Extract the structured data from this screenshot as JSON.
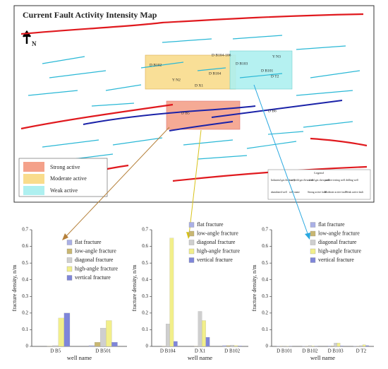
{
  "map": {
    "title": "Current Fault Activity Intensity Map",
    "north": "N",
    "zones": [
      "Strong active",
      "Moderate active",
      "Weak active"
    ],
    "wells": [
      "D B102",
      "D B104-106",
      "Y N3",
      "D B103",
      "D B101",
      "D T2",
      "Y N2",
      "D B104",
      "D X1",
      "D B5",
      "D B6"
    ],
    "legend": {
      "title": "Legend",
      "items": [
        "Industrial gas flow well",
        "low-yield gas flow well",
        "oil and gas show well",
        "positive testing well",
        "drilling well",
        "abandoned well",
        "well name",
        "Strong active fault",
        "Moderate active fault",
        "Weak active fault"
      ]
    }
  },
  "chart_data": [
    {
      "type": "bar",
      "categories": [
        "D B5",
        "D B501"
      ],
      "x_label": "well name",
      "y_label": "fracture density, n/m",
      "ylim": [
        0,
        0.7
      ],
      "yticks": [
        0,
        0.1,
        0.2,
        0.3,
        0.4,
        0.5,
        0.6,
        0.7
      ],
      "series": [
        {
          "name": "flat fracture",
          "color": "#aab0e6",
          "values": [
            0,
            0.005
          ]
        },
        {
          "name": "low-angle fracture",
          "color": "#c9b772",
          "values": [
            0.002,
            0.025
          ]
        },
        {
          "name": "diagonal fracture",
          "color": "#cfcfcf",
          "values": [
            0.005,
            0.11
          ]
        },
        {
          "name": "high-angle fracture",
          "color": "#f2ef8a",
          "values": [
            0.17,
            0.155
          ]
        },
        {
          "name": "vertical fracture",
          "color": "#7f86d9",
          "values": [
            0.2,
            0.025
          ]
        }
      ]
    },
    {
      "type": "bar",
      "categories": [
        "D B104",
        "D X1",
        "D B102"
      ],
      "x_label": "well name",
      "y_label": "fracture density, n/m",
      "ylim": [
        0,
        0.7
      ],
      "yticks": [
        0,
        0.1,
        0.2,
        0.3,
        0.4,
        0.5,
        0.6,
        0.7
      ],
      "series": [
        {
          "name": "flat fracture",
          "color": "#aab0e6",
          "values": [
            0,
            0,
            0.005
          ]
        },
        {
          "name": "low-angle fracture",
          "color": "#c9b772",
          "values": [
            0.002,
            0.002,
            0.005
          ]
        },
        {
          "name": "diagonal fracture",
          "color": "#cfcfcf",
          "values": [
            0.135,
            0.21,
            0.008
          ]
        },
        {
          "name": "high-angle fracture",
          "color": "#f2ef8a",
          "values": [
            0.65,
            0.155,
            0.005
          ]
        },
        {
          "name": "vertical fracture",
          "color": "#7f86d9",
          "values": [
            0.03,
            0.055,
            0.003
          ]
        }
      ]
    },
    {
      "type": "bar",
      "categories": [
        "D B101",
        "D B102",
        "D B103",
        "D T2"
      ],
      "x_label": "well name",
      "y_label": "fracture density, n/m",
      "ylim": [
        0,
        0.7
      ],
      "yticks": [
        0,
        0.1,
        0.2,
        0.3,
        0.4,
        0.5,
        0.6,
        0.7
      ],
      "series": [
        {
          "name": "flat fracture",
          "color": "#aab0e6",
          "values": [
            0.002,
            0.002,
            0.003,
            0.002
          ]
        },
        {
          "name": "low-angle fracture",
          "color": "#c9b772",
          "values": [
            0.002,
            0.002,
            0.003,
            0.002
          ]
        },
        {
          "name": "diagonal fracture",
          "color": "#cfcfcf",
          "values": [
            0.003,
            0.005,
            0.02,
            0.005
          ]
        },
        {
          "name": "high-angle fracture",
          "color": "#f2ef8a",
          "values": [
            0.002,
            0.003,
            0.02,
            0.01
          ]
        },
        {
          "name": "vertical fracture",
          "color": "#7f86d9",
          "values": [
            0.002,
            0.002,
            0.003,
            0.005
          ]
        }
      ]
    }
  ]
}
